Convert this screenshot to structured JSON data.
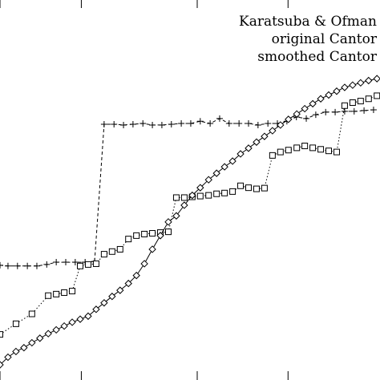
{
  "chart_data": {
    "type": "line",
    "title": "",
    "xlabel": "",
    "ylabel": "",
    "grid": false,
    "legend_position": "top-right",
    "xlim": [
      0,
      100
    ],
    "ylim": [
      0,
      100
    ],
    "x_ticks": [
      0,
      21.4,
      51.9,
      75.8
    ],
    "series": [
      {
        "name": "Karatsuba & Ofman",
        "marker": "plus",
        "line": "dashed",
        "x": [
          0,
          2.1,
          4.6,
          7.2,
          9.7,
          12.3,
          14.8,
          17.3,
          19.8,
          22.4,
          24.9,
          27.4,
          30.0,
          32.5,
          35.0,
          37.6,
          40.1,
          42.6,
          45.1,
          47.7,
          50.2,
          52.7,
          55.3,
          57.8,
          60.3,
          62.9,
          65.4,
          67.9,
          70.5,
          73.0,
          75.5,
          78.0,
          80.6,
          83.1,
          85.7,
          88.2,
          90.7,
          93.2,
          95.8,
          98.3
        ],
        "y": [
          30.2,
          30.0,
          30.0,
          30.0,
          30.0,
          30.4,
          31.0,
          31.0,
          31.0,
          31.0,
          31.2,
          67.3,
          67.3,
          67.1,
          67.3,
          67.5,
          67.1,
          67.1,
          67.3,
          67.5,
          67.5,
          68.1,
          67.5,
          68.8,
          67.5,
          67.5,
          67.5,
          67.1,
          67.5,
          67.5,
          68.1,
          69.2,
          68.8,
          69.8,
          70.5,
          70.5,
          70.7,
          70.7,
          70.9,
          71.1
        ]
      },
      {
        "name": "original Cantor",
        "marker": "square",
        "line": "dotted",
        "x": [
          0,
          4.2,
          8.4,
          12.7,
          14.8,
          16.9,
          19.0,
          21.1,
          23.2,
          25.3,
          27.4,
          29.5,
          31.6,
          33.8,
          35.9,
          38.0,
          40.1,
          42.2,
          44.3,
          46.4,
          48.5,
          50.6,
          52.7,
          54.9,
          57.0,
          59.1,
          61.2,
          63.3,
          65.4,
          67.5,
          69.6,
          71.7,
          73.8,
          75.9,
          78.1,
          80.2,
          82.3,
          84.4,
          86.5,
          88.6,
          90.7,
          92.8,
          94.9,
          97.0,
          99.2
        ],
        "y": [
          12.0,
          14.8,
          17.4,
          22.2,
          22.6,
          23.0,
          23.4,
          30.0,
          30.4,
          30.6,
          33.1,
          33.8,
          34.4,
          37.1,
          38.0,
          38.4,
          38.6,
          38.8,
          39.0,
          48.0,
          48.0,
          48.2,
          48.4,
          48.6,
          49.0,
          49.2,
          49.6,
          51.1,
          50.6,
          50.3,
          50.5,
          59.1,
          60.0,
          60.5,
          61.1,
          61.6,
          61.1,
          60.7,
          60.3,
          60.0,
          72.2,
          73.0,
          73.4,
          74.0,
          74.8
        ]
      },
      {
        "name": "smoothed Cantor",
        "marker": "diamond",
        "line": "solid",
        "x": [
          0,
          2.1,
          4.2,
          6.3,
          8.4,
          10.5,
          12.7,
          14.8,
          16.9,
          19.0,
          21.1,
          23.2,
          25.3,
          27.4,
          29.5,
          31.6,
          33.8,
          35.9,
          38.0,
          40.1,
          42.2,
          44.3,
          46.4,
          48.5,
          50.6,
          52.7,
          54.9,
          57.0,
          59.1,
          61.2,
          63.3,
          65.4,
          67.5,
          69.6,
          71.7,
          73.8,
          75.9,
          78.1,
          80.2,
          82.3,
          84.4,
          86.5,
          88.6,
          90.7,
          92.8,
          94.9,
          97.0,
          99.2
        ],
        "y": [
          4.0,
          6.0,
          7.5,
          8.5,
          9.8,
          11.0,
          12.2,
          13.2,
          14.2,
          15.2,
          16.0,
          16.8,
          18.6,
          20.3,
          22.0,
          23.6,
          25.4,
          27.5,
          30.6,
          34.4,
          38.0,
          41.6,
          43.2,
          46.0,
          48.6,
          50.6,
          52.7,
          54.4,
          56.1,
          57.6,
          59.5,
          61.0,
          62.6,
          64.1,
          65.6,
          67.1,
          68.6,
          70.0,
          71.4,
          72.7,
          74.0,
          75.0,
          76.0,
          77.0,
          77.6,
          78.2,
          78.8,
          79.3
        ]
      }
    ]
  }
}
